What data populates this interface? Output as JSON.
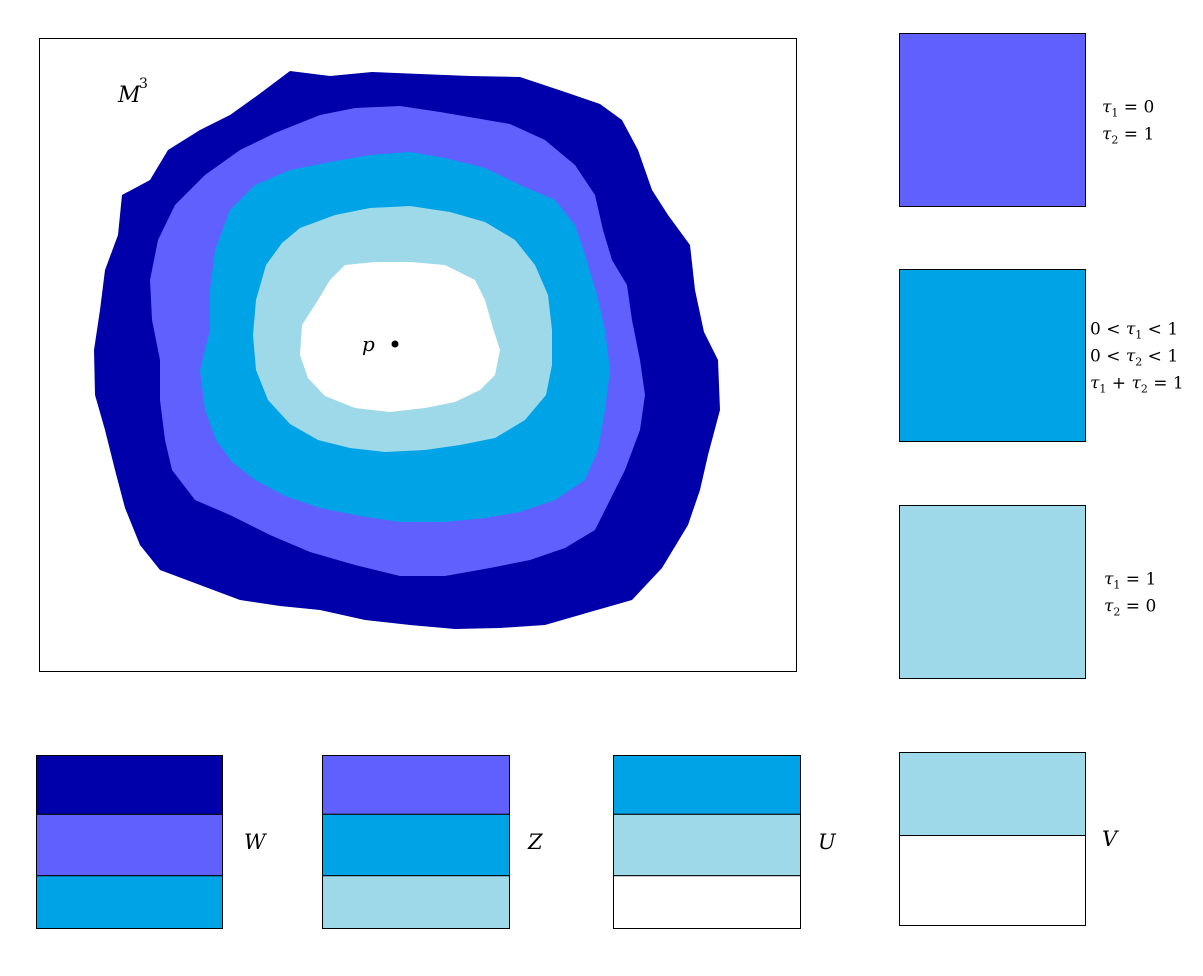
{
  "colors": {
    "dark_blue": "#0000AA",
    "medium_blue": "#6060FF",
    "sky_blue": "#00A3E6",
    "light_blue": "#9ED9EA",
    "white": "#FFFFFF",
    "outline": "#000000"
  },
  "diagram": {
    "manifold_label": "M",
    "manifold_exponent": "3",
    "point_label": "p"
  },
  "legend": [
    {
      "color_key": "medium_blue",
      "lines": [
        {
          "var": "τ",
          "sub": "1",
          "rest": " = 0"
        },
        {
          "var": "τ",
          "sub": "2",
          "rest": " = 1"
        }
      ]
    },
    {
      "color_key": "sky_blue",
      "lines": [
        {
          "pre": "0 < ",
          "var": "τ",
          "sub": "1",
          "rest": " < 1"
        },
        {
          "pre": "0 < ",
          "var": "τ",
          "sub": "2",
          "rest": " < 1"
        },
        {
          "var": "τ",
          "sub": "1",
          "mid": " + ",
          "var2": "τ",
          "sub2": "2",
          "rest": " = 1"
        }
      ]
    },
    {
      "color_key": "light_blue",
      "lines": [
        {
          "var": "τ",
          "sub": "1",
          "rest": " = 1"
        },
        {
          "var": "τ",
          "sub": "2",
          "rest": " = 0"
        }
      ]
    }
  ],
  "sets": [
    {
      "label": "W",
      "stripes": [
        "dark_blue",
        "medium_blue",
        "sky_blue"
      ]
    },
    {
      "label": "Z",
      "stripes": [
        "medium_blue",
        "sky_blue",
        "light_blue"
      ]
    },
    {
      "label": "U",
      "stripes": [
        "sky_blue",
        "light_blue",
        "white"
      ]
    },
    {
      "label": "V",
      "stripes": [
        "light_blue",
        "white"
      ]
    }
  ]
}
